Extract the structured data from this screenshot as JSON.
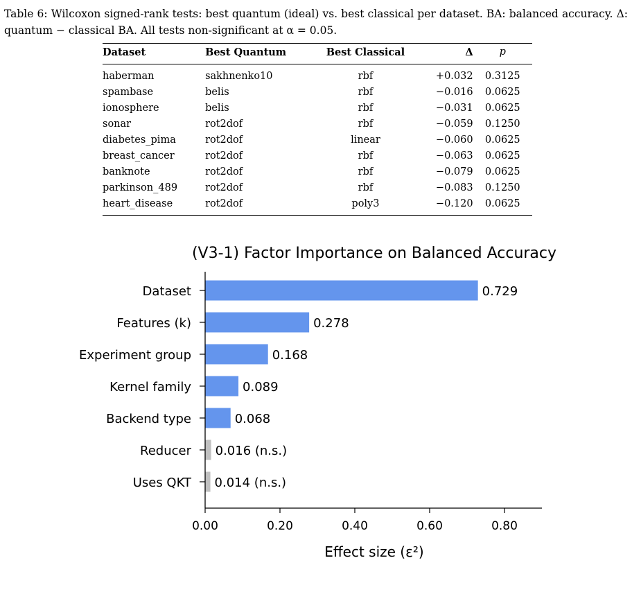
{
  "caption": {
    "label": "Table 6:",
    "text": " Wilcoxon signed-rank tests: best quantum (ideal) vs. best classical per dataset. BA: balanced accuracy. Δ: quantum − classical BA. All tests non-significant at α = 0.05."
  },
  "table": {
    "headers": [
      "Dataset",
      "Best Quantum",
      "Best Classical",
      "Δ",
      "p"
    ],
    "rows": [
      [
        "haberman",
        "sakhnenko10",
        "rbf",
        "+0.032",
        "0.3125"
      ],
      [
        "spambase",
        "belis",
        "rbf",
        "−0.016",
        "0.0625"
      ],
      [
        "ionosphere",
        "belis",
        "rbf",
        "−0.031",
        "0.0625"
      ],
      [
        "sonar",
        "rot2dof",
        "rbf",
        "−0.059",
        "0.1250"
      ],
      [
        "diabetes_pima",
        "rot2dof",
        "linear",
        "−0.060",
        "0.0625"
      ],
      [
        "breast_cancer",
        "rot2dof",
        "rbf",
        "−0.063",
        "0.0625"
      ],
      [
        "banknote",
        "rot2dof",
        "rbf",
        "−0.079",
        "0.0625"
      ],
      [
        "parkinson_489",
        "rot2dof",
        "rbf",
        "−0.083",
        "0.1250"
      ],
      [
        "heart_disease",
        "rot2dof",
        "poly3",
        "−0.120",
        "0.0625"
      ]
    ]
  },
  "chart_data": {
    "type": "bar",
    "orientation": "horizontal",
    "title": "(V3-1) Factor Importance on Balanced Accuracy",
    "xlabel": "Effect size (ε²)",
    "ylabel": "",
    "xlim": [
      0,
      0.9
    ],
    "xticks": [
      0.0,
      0.2,
      0.4,
      0.6,
      0.8
    ],
    "xtick_labels": [
      "0.00",
      "0.20",
      "0.40",
      "0.60",
      "0.80"
    ],
    "categories": [
      "Dataset",
      "Features (k)",
      "Experiment group",
      "Kernel family",
      "Backend type",
      "Reducer",
      "Uses QKT"
    ],
    "values": [
      0.729,
      0.278,
      0.168,
      0.089,
      0.068,
      0.016,
      0.014
    ],
    "value_labels": [
      "0.729",
      "0.278",
      "0.168",
      "0.089",
      "0.068",
      "0.016 (n.s.)",
      "0.014 (n.s.)"
    ],
    "significant": [
      true,
      true,
      true,
      true,
      true,
      false,
      false
    ],
    "colors": {
      "significant": "#6495ED",
      "not_significant": "#C0C0C0"
    },
    "grid": false
  }
}
